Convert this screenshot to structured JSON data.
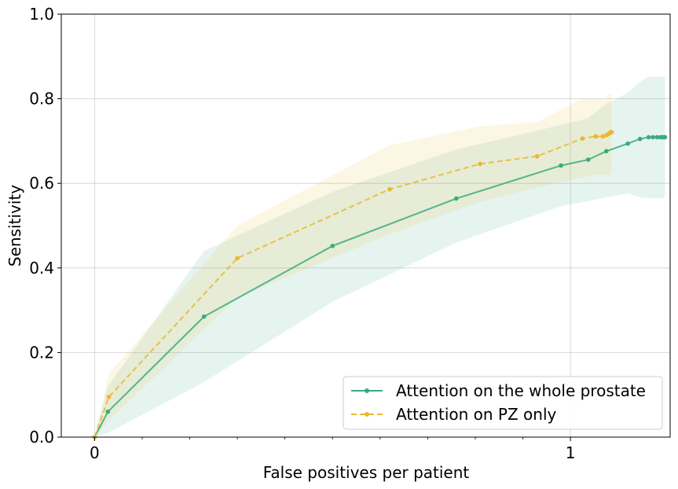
{
  "chart_data": {
    "type": "line",
    "title": "",
    "xlabel": "False positives per patient",
    "ylabel": "Sensitivity",
    "xscale": "symlog",
    "xlim": [
      -0.07,
      1.62
    ],
    "ylim": [
      0.0,
      1.0
    ],
    "x_ticks": [
      {
        "value": 0,
        "label": "0"
      },
      {
        "value": 1,
        "label": "1"
      }
    ],
    "y_ticks": [
      {
        "value": 0.0,
        "label": "0.0"
      },
      {
        "value": 0.2,
        "label": "0.2"
      },
      {
        "value": 0.4,
        "label": "0.4"
      },
      {
        "value": 0.6,
        "label": "0.6"
      },
      {
        "value": 0.8,
        "label": "0.8"
      },
      {
        "value": 1.0,
        "label": "1.0"
      }
    ],
    "grid": true,
    "legend_position": "bottom-right",
    "series": [
      {
        "name": "Attention on the whole prostate",
        "color": "#3aaa80",
        "line_style": "solid",
        "marker": "circle",
        "x": [
          0.0,
          0.028,
          0.23,
          0.5,
          0.76,
          0.98,
          1.09,
          1.19,
          1.32,
          1.4,
          1.46,
          1.49,
          1.52,
          1.545,
          1.56,
          1.57,
          1.575,
          1.58
        ],
        "y": [
          0.0,
          0.06,
          0.285,
          0.452,
          0.564,
          0.642,
          0.656,
          0.676,
          0.694,
          0.705,
          0.709,
          0.709,
          0.709,
          0.709,
          0.709,
          0.709,
          0.709,
          0.709
        ],
        "band_upper": [
          0.0,
          0.12,
          0.44,
          0.58,
          0.68,
          0.738,
          0.754,
          0.788,
          0.814,
          0.84,
          0.852,
          0.852,
          0.852,
          0.852,
          0.852,
          0.852,
          0.852,
          0.852
        ],
        "band_lower": [
          0.0,
          0.01,
          0.13,
          0.32,
          0.46,
          0.546,
          0.558,
          0.567,
          0.576,
          0.567,
          0.565,
          0.565,
          0.565,
          0.565,
          0.565,
          0.565,
          0.565,
          0.565
        ]
      },
      {
        "name": "Attention on PZ only",
        "color": "#e8b830",
        "line_style": "dashed",
        "marker": "circle",
        "x": [
          0.0,
          0.03,
          0.3,
          0.62,
          0.81,
          0.93,
          1.06,
          1.13,
          1.17,
          1.19,
          1.2,
          1.21,
          1.215,
          1.22
        ],
        "y": [
          0.0,
          0.095,
          0.423,
          0.586,
          0.646,
          0.664,
          0.706,
          0.711,
          0.711,
          0.714,
          0.716,
          0.719,
          0.721,
          0.721
        ],
        "band_upper": [
          0.0,
          0.15,
          0.5,
          0.69,
          0.735,
          0.745,
          0.8,
          0.8,
          0.8,
          0.8,
          0.812,
          0.812,
          0.812,
          0.812
        ],
        "band_lower": [
          0.0,
          0.04,
          0.33,
          0.48,
          0.556,
          0.59,
          0.614,
          0.62,
          0.62,
          0.62,
          0.614,
          0.62,
          0.628,
          0.628
        ]
      }
    ]
  }
}
